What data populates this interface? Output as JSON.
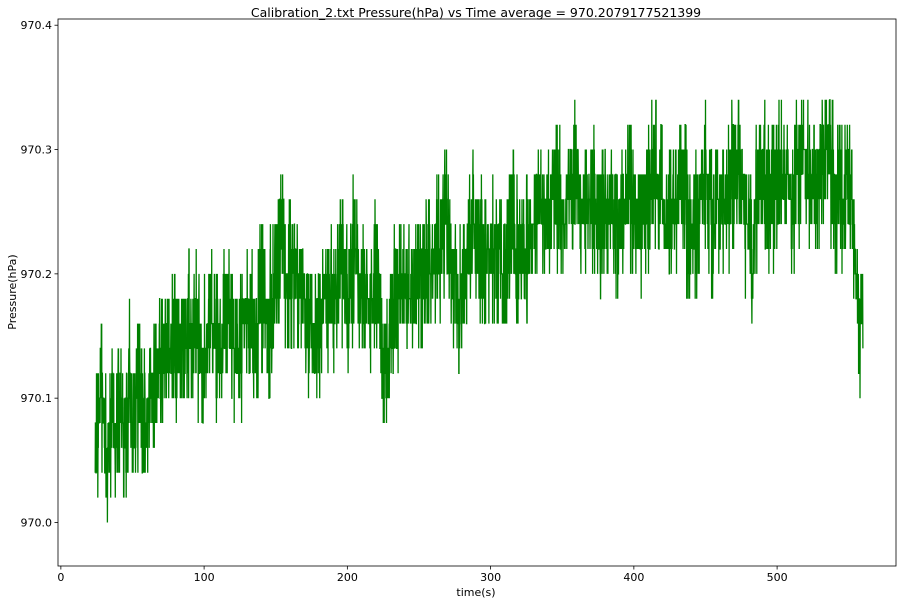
{
  "chart_data": {
    "type": "line",
    "title": "Calibration_2.txt  Pressure(hPa) vs Time  average = 970.2079177521399",
    "xlabel": "time(s)",
    "ylabel": "Pressure(hPa)",
    "xlim": [
      -2,
      583
    ],
    "ylim": [
      969.965,
      970.405
    ],
    "xticks": [
      0,
      100,
      200,
      300,
      400,
      500
    ],
    "xtick_labels": [
      "0",
      "100",
      "200",
      "300",
      "400",
      "500"
    ],
    "yticks": [
      970.0,
      970.1,
      970.2,
      970.3,
      970.4
    ],
    "ytick_labels": [
      "970.0",
      "970.1",
      "970.2",
      "970.3",
      "970.4"
    ],
    "grid": false,
    "legend": "none",
    "line_color": "#008000",
    "series": [
      {
        "x": [
          24,
          26,
          28,
          30,
          32,
          34,
          36,
          38,
          40,
          42,
          44,
          46,
          48,
          50,
          55,
          60,
          62,
          65,
          70,
          75,
          80,
          85,
          90,
          95,
          100,
          105,
          110,
          115,
          120,
          125,
          130,
          135,
          140,
          145,
          150,
          155,
          160,
          165,
          170,
          175,
          180,
          185,
          190,
          195,
          200,
          205,
          210,
          215,
          220,
          225,
          227,
          230,
          235,
          240,
          245,
          250,
          255,
          260,
          265,
          268,
          270,
          275,
          278,
          280,
          285,
          290,
          295,
          300,
          305,
          310,
          315,
          320,
          325,
          330,
          335,
          340,
          345,
          350,
          355,
          360,
          365,
          370,
          375,
          380,
          385,
          390,
          395,
          400,
          405,
          410,
          415,
          420,
          425,
          430,
          435,
          440,
          445,
          450,
          455,
          460,
          465,
          470,
          475,
          480,
          483,
          485,
          490,
          495,
          500,
          505,
          510,
          515,
          520,
          525,
          530,
          535,
          540,
          545,
          550,
          553,
          555,
          558,
          560
        ],
        "y": [
          970.06,
          970.09,
          970.12,
          970.08,
          970.04,
          970.07,
          970.1,
          970.05,
          970.08,
          970.11,
          970.06,
          970.09,
          970.12,
          970.08,
          970.1,
          970.07,
          970.11,
          970.13,
          970.12,
          970.15,
          970.14,
          970.13,
          970.16,
          970.15,
          970.14,
          970.17,
          970.13,
          970.16,
          970.15,
          970.14,
          970.17,
          970.15,
          970.18,
          970.16,
          970.2,
          970.22,
          970.19,
          970.21,
          970.18,
          970.16,
          970.15,
          970.19,
          970.17,
          970.2,
          970.18,
          970.22,
          970.19,
          970.17,
          970.2,
          970.14,
          970.12,
          970.16,
          970.18,
          970.2,
          970.17,
          970.19,
          970.21,
          970.2,
          970.23,
          970.25,
          970.22,
          970.2,
          970.16,
          970.19,
          970.22,
          970.24,
          970.21,
          970.23,
          970.22,
          970.2,
          970.24,
          970.21,
          970.22,
          970.24,
          970.26,
          970.25,
          970.27,
          970.24,
          970.26,
          970.28,
          970.25,
          970.27,
          970.24,
          970.26,
          970.25,
          970.23,
          970.27,
          970.25,
          970.24,
          970.26,
          970.28,
          970.25,
          970.24,
          970.27,
          970.26,
          970.23,
          970.25,
          970.28,
          970.24,
          970.27,
          970.25,
          970.29,
          970.26,
          970.24,
          970.2,
          970.26,
          970.28,
          970.25,
          970.27,
          970.29,
          970.26,
          970.28,
          970.3,
          970.27,
          970.29,
          970.31,
          970.27,
          970.25,
          970.28,
          970.24,
          970.2,
          970.16,
          970.17
        ]
      }
    ]
  }
}
